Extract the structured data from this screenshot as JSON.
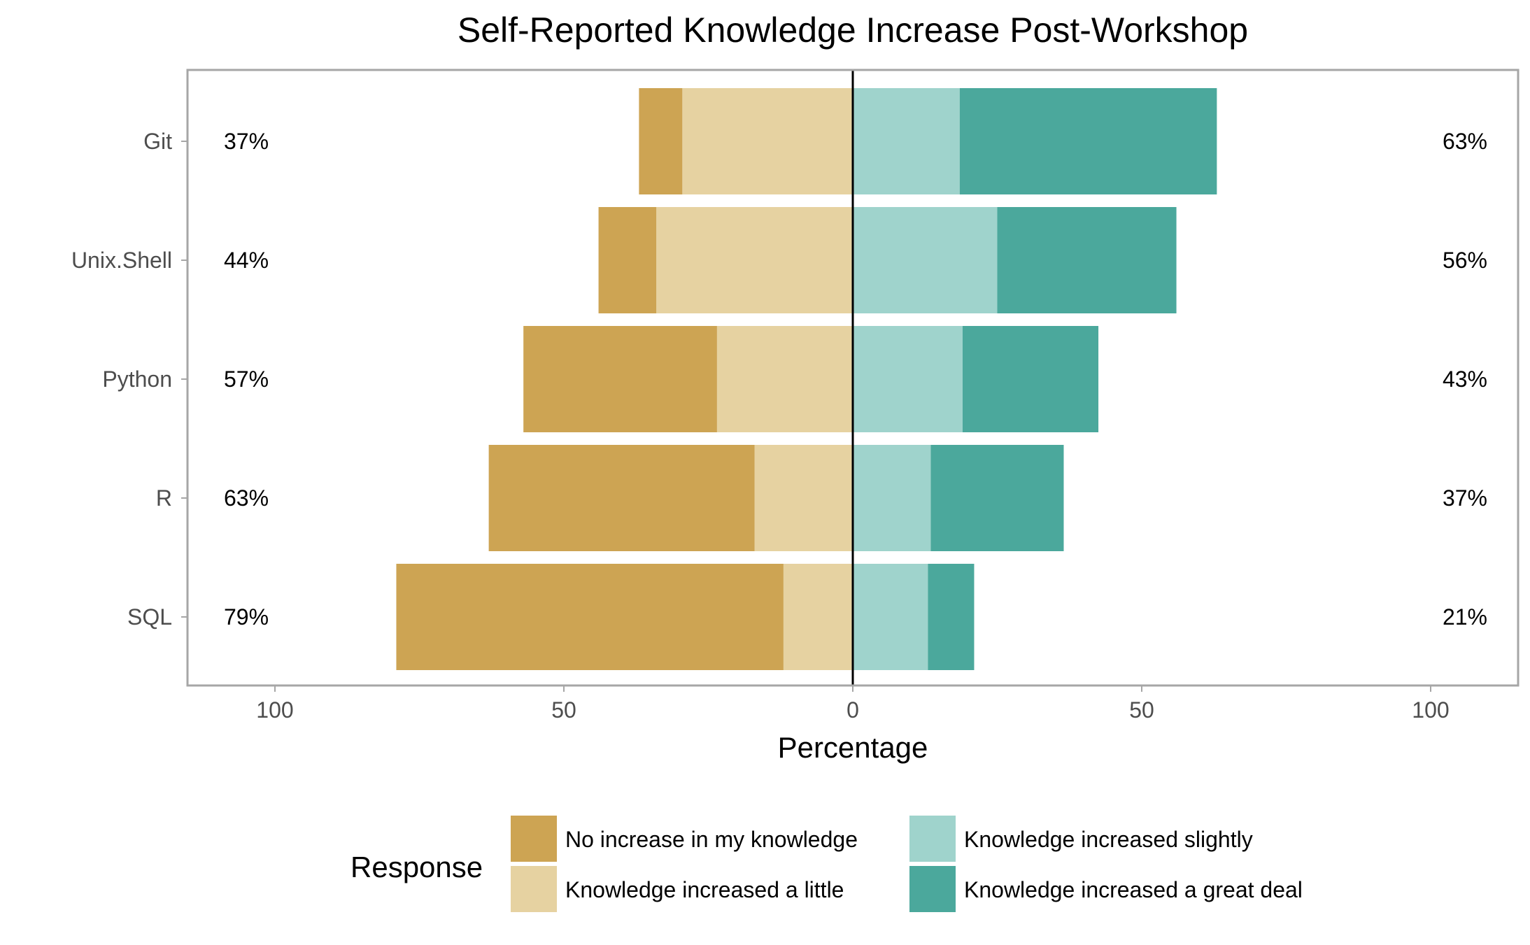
{
  "chart_data": {
    "type": "bar",
    "orientation": "horizontal",
    "stacking": "diverging",
    "title": "Self-Reported Knowledge Increase Post-Workshop",
    "xlabel": "Percentage",
    "ylabel": "",
    "xlim": [
      -100,
      100
    ],
    "xticks": [
      -100,
      -50,
      0,
      50,
      100
    ],
    "xtick_labels": [
      "100",
      "50",
      "0",
      "50",
      "100"
    ],
    "grid": true,
    "legend": {
      "title": "Response",
      "placement": "bottom"
    },
    "categories": [
      "Git",
      "Unix.Shell",
      "Python",
      "R",
      "SQL"
    ],
    "series": [
      {
        "name": "No increase in my knowledge",
        "side": "negative",
        "color": "#CDA453",
        "values": [
          7.5,
          10,
          33.5,
          46,
          67
        ]
      },
      {
        "name": "Knowledge increased a little",
        "side": "negative",
        "color": "#E6D2A1",
        "values": [
          29.5,
          34,
          23.5,
          17,
          12
        ]
      },
      {
        "name": "Knowledge increased slightly",
        "side": "positive",
        "color": "#9FD3CC",
        "values": [
          18.5,
          25,
          19,
          13.5,
          13
        ]
      },
      {
        "name": "Knowledge increased a great deal",
        "side": "positive",
        "color": "#4BA89C",
        "values": [
          44.5,
          31,
          23.5,
          23,
          8
        ]
      }
    ],
    "left_percent_labels": [
      "37%",
      "44%",
      "57%",
      "63%",
      "79%"
    ],
    "right_percent_labels": [
      "63%",
      "56%",
      "43%",
      "37%",
      "21%"
    ]
  }
}
